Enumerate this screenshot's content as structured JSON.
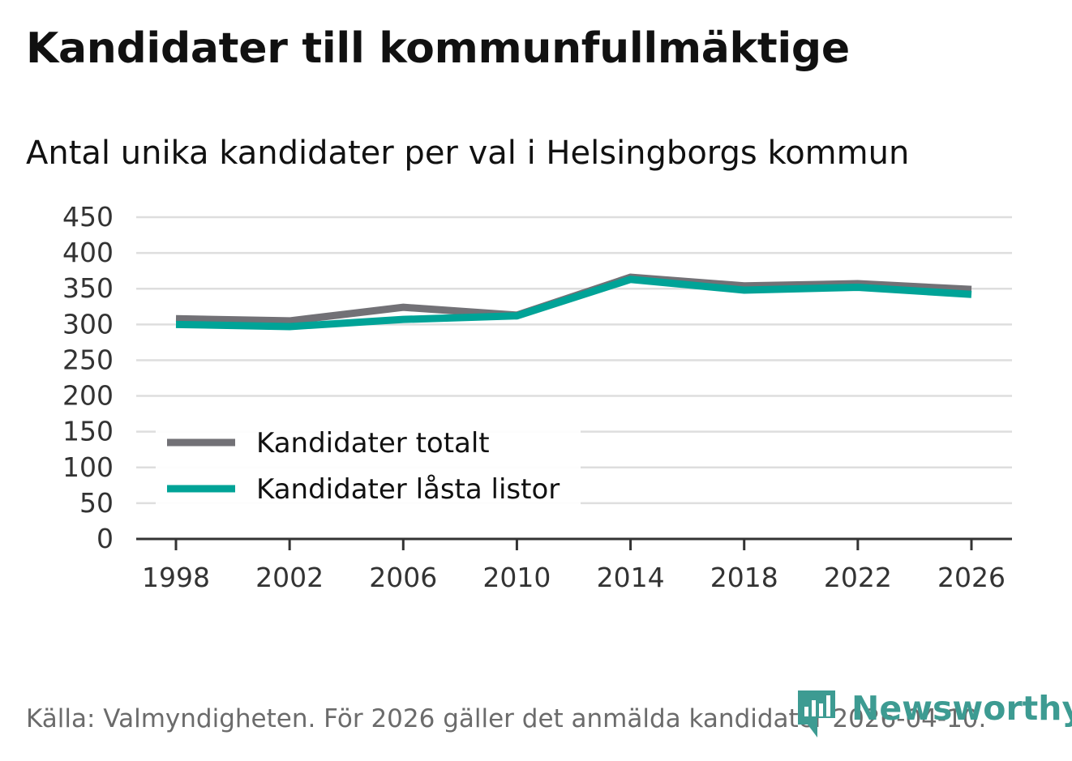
{
  "title": "Kandidater till kommunfullmäktige",
  "subtitle": "Antal unika kandidater per val i Helsingborgs kommun",
  "source": "Källa: Valmyndigheten. För 2026 gäller det anmälda kandidater 2026-04-10.",
  "brand": "Newsworthy",
  "colors": {
    "totalt": "#727176",
    "lasta": "#00a397",
    "grid": "#dedede",
    "axis": "#333333",
    "brand": "#3d9b92"
  },
  "chart_data": {
    "type": "line",
    "title": "Kandidater till kommunfullmäktige",
    "subtitle": "Antal unika kandidater per val i Helsingborgs kommun",
    "xlabel": "",
    "ylabel": "",
    "categories": [
      "1998",
      "2002",
      "2006",
      "2010",
      "2014",
      "2018",
      "2022",
      "2026"
    ],
    "yticks": [
      "0",
      "50",
      "100",
      "150",
      "200",
      "250",
      "300",
      "350",
      "400",
      "450"
    ],
    "ylim": [
      0,
      450
    ],
    "grid": true,
    "legend_position": "bottom-left",
    "series": [
      {
        "name": "Kandidater totalt",
        "color": "#727176",
        "values": [
          308,
          305,
          324,
          313,
          366,
          354,
          357,
          349
        ]
      },
      {
        "name": "Kandidater låsta listor",
        "color": "#00a397",
        "values": [
          300,
          297,
          307,
          312,
          363,
          348,
          352,
          342
        ]
      }
    ]
  }
}
